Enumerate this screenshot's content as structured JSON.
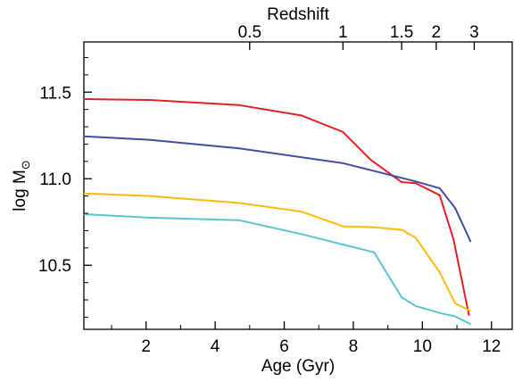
{
  "chart_data": {
    "type": "line",
    "xlabel": "Age (Gyr)",
    "ylabel": "log M",
    "ylabel_symbol": "⊙",
    "top_axis_label": "Redshift",
    "xlim": [
      0.2,
      12.6
    ],
    "ylim": [
      10.13,
      11.79
    ],
    "x_ticks": [
      2,
      4,
      6,
      8,
      10,
      12
    ],
    "y_ticks": [
      10.5,
      11.0,
      11.5
    ],
    "y_tick_labels": [
      "10.5",
      "11.0",
      "11.5"
    ],
    "redshift_ticks": [
      {
        "label": "0.5",
        "age": 5.0
      },
      {
        "label": "1",
        "age": 7.7
      },
      {
        "label": "1.5",
        "age": 9.4
      },
      {
        "label": "2",
        "age": 10.4
      },
      {
        "label": "3",
        "age": 11.5
      }
    ],
    "grid": false,
    "legend": "none",
    "series": [
      {
        "color": "#e31f26",
        "x": [
          0.2,
          2.1,
          4.7,
          6.5,
          7.7,
          8.5,
          9.4,
          9.8,
          10.5,
          10.9,
          11.35
        ],
        "y": [
          11.46,
          11.455,
          11.425,
          11.365,
          11.27,
          11.11,
          10.98,
          10.975,
          10.905,
          10.65,
          10.21
        ]
      },
      {
        "color": "#3e4ea0",
        "x": [
          0.2,
          2.1,
          4.7,
          7.7,
          9.8,
          10.5,
          10.95,
          11.4
        ],
        "y": [
          11.245,
          11.225,
          11.175,
          11.09,
          10.985,
          10.945,
          10.83,
          10.635
        ]
      },
      {
        "color": "#fbbc0f",
        "x": [
          0.2,
          2.1,
          4.7,
          6.5,
          7.7,
          8.6,
          9.4,
          9.8,
          10.5,
          10.95,
          11.4
        ],
        "y": [
          10.915,
          10.9,
          10.86,
          10.81,
          10.725,
          10.72,
          10.705,
          10.66,
          10.46,
          10.28,
          10.235
        ]
      },
      {
        "color": "#5bc4d1",
        "x": [
          0.2,
          2.1,
          4.7,
          6.5,
          7.7,
          8.6,
          9.4,
          9.8,
          10.5,
          10.95,
          11.4
        ],
        "y": [
          10.795,
          10.775,
          10.76,
          10.68,
          10.62,
          10.575,
          10.315,
          10.265,
          10.225,
          10.205,
          10.16
        ]
      }
    ]
  }
}
